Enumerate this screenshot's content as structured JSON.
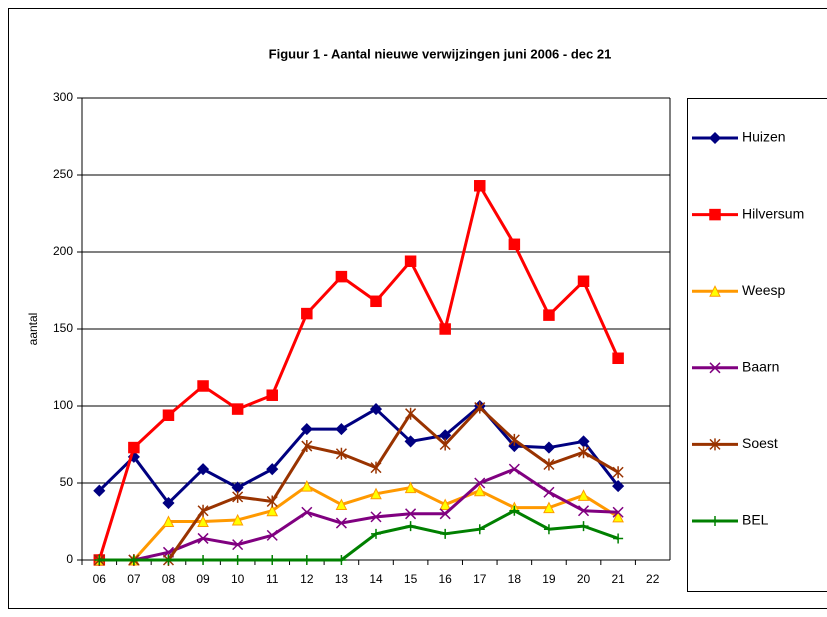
{
  "chart_data": {
    "type": "line",
    "title": "Figuur 1 - Aantal nieuwe verwijzingen juni 2006 - dec 21",
    "y_label": "aantal",
    "categories": [
      "06",
      "07",
      "08",
      "09",
      "10",
      "11",
      "12",
      "13",
      "14",
      "15",
      "16",
      "17",
      "18",
      "19",
      "20",
      "21",
      "22"
    ],
    "ylim": [
      0,
      300
    ],
    "yticks": [
      0,
      50,
      100,
      150,
      200,
      250,
      300
    ],
    "grid": true,
    "legend": "right",
    "series": [
      {
        "name": "Huizen",
        "color": "#000080",
        "marker": "diamond",
        "values": [
          45,
          67,
          37,
          59,
          47,
          59,
          85,
          85,
          98,
          77,
          81,
          100,
          74,
          73,
          77,
          48,
          null
        ]
      },
      {
        "name": "Hilversum",
        "color": "#ff0000",
        "marker": "square",
        "values": [
          0,
          73,
          94,
          113,
          98,
          107,
          160,
          184,
          168,
          194,
          150,
          243,
          205,
          159,
          181,
          131,
          null
        ]
      },
      {
        "name": "Weesp",
        "color": "#ff9900",
        "marker": "triangle",
        "values": [
          0,
          0,
          25,
          25,
          26,
          32,
          48,
          36,
          43,
          47,
          36,
          45,
          34,
          34,
          42,
          28,
          null
        ]
      },
      {
        "name": "Baarn",
        "color": "#800080",
        "marker": "x",
        "values": [
          0,
          0,
          5,
          14,
          10,
          16,
          31,
          24,
          28,
          30,
          30,
          50,
          59,
          44,
          32,
          31,
          null
        ]
      },
      {
        "name": "Soest",
        "color": "#993300",
        "marker": "star",
        "values": [
          0,
          0,
          0,
          32,
          41,
          38,
          74,
          69,
          60,
          95,
          75,
          99,
          78,
          62,
          70,
          57,
          null
        ]
      },
      {
        "name": "BEL",
        "color": "#008000",
        "marker": "plus",
        "values": [
          0,
          0,
          0,
          0,
          0,
          0,
          0,
          0,
          17,
          22,
          17,
          20,
          32,
          20,
          22,
          14,
          null
        ]
      }
    ]
  }
}
